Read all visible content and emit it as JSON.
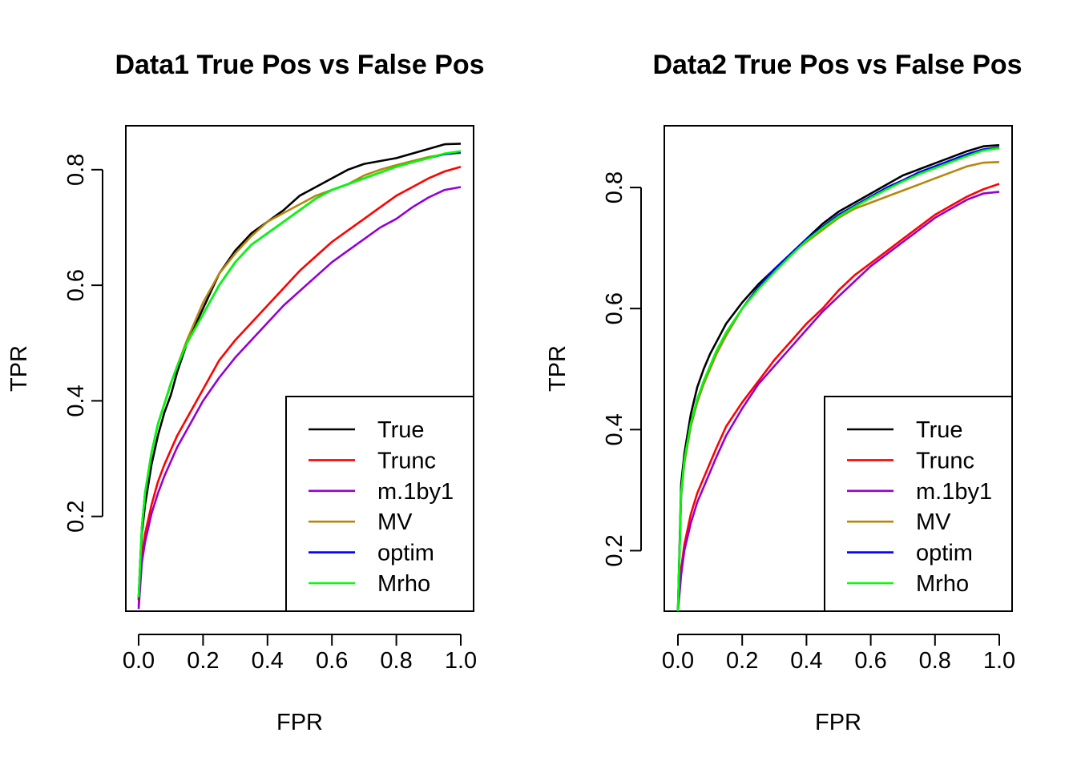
{
  "chart_data": [
    {
      "type": "line",
      "title": "Data1 True Pos vs False Pos",
      "xlabel": "FPR",
      "ylabel": "TPR",
      "xlim": [
        0,
        1
      ],
      "ylim": [
        0.036,
        0.876
      ],
      "xticks": [
        "0.0",
        "0.2",
        "0.4",
        "0.6",
        "0.8",
        "1.0"
      ],
      "yticks": [
        "0.2",
        "0.4",
        "0.6",
        "0.8"
      ],
      "legend_position": "bottom-right",
      "series": [
        {
          "name": "True",
          "color": "#000000",
          "x": [
            0,
            0.01,
            0.02,
            0.04,
            0.06,
            0.08,
            0.1,
            0.12,
            0.15,
            0.2,
            0.25,
            0.3,
            0.35,
            0.4,
            0.45,
            0.5,
            0.55,
            0.6,
            0.65,
            0.7,
            0.75,
            0.8,
            0.85,
            0.9,
            0.95,
            1.0
          ],
          "y": [
            0.055,
            0.17,
            0.22,
            0.29,
            0.34,
            0.38,
            0.41,
            0.45,
            0.5,
            0.56,
            0.62,
            0.66,
            0.69,
            0.71,
            0.73,
            0.755,
            0.77,
            0.785,
            0.8,
            0.81,
            0.815,
            0.82,
            0.828,
            0.836,
            0.844,
            0.845
          ]
        },
        {
          "name": "Trunc",
          "color": "#ff0000",
          "x": [
            0,
            0.01,
            0.02,
            0.04,
            0.06,
            0.08,
            0.1,
            0.12,
            0.15,
            0.2,
            0.25,
            0.3,
            0.35,
            0.4,
            0.45,
            0.5,
            0.55,
            0.6,
            0.65,
            0.7,
            0.75,
            0.8,
            0.85,
            0.9,
            0.95,
            1.0
          ],
          "y": [
            0.045,
            0.13,
            0.17,
            0.22,
            0.26,
            0.29,
            0.315,
            0.34,
            0.37,
            0.42,
            0.47,
            0.505,
            0.535,
            0.565,
            0.595,
            0.625,
            0.65,
            0.675,
            0.695,
            0.715,
            0.735,
            0.755,
            0.77,
            0.785,
            0.797,
            0.805
          ]
        },
        {
          "name": "m.1by1",
          "color": "#9400d3",
          "x": [
            0,
            0.01,
            0.02,
            0.04,
            0.06,
            0.08,
            0.1,
            0.12,
            0.15,
            0.2,
            0.25,
            0.3,
            0.35,
            0.4,
            0.45,
            0.5,
            0.55,
            0.6,
            0.65,
            0.7,
            0.75,
            0.8,
            0.85,
            0.9,
            0.95,
            1.0
          ],
          "y": [
            0.04,
            0.12,
            0.155,
            0.205,
            0.24,
            0.27,
            0.295,
            0.32,
            0.35,
            0.4,
            0.44,
            0.475,
            0.505,
            0.535,
            0.565,
            0.59,
            0.615,
            0.64,
            0.66,
            0.68,
            0.7,
            0.715,
            0.735,
            0.752,
            0.765,
            0.77
          ]
        },
        {
          "name": "MV",
          "color": "#b8860b",
          "x": [
            0,
            0.01,
            0.02,
            0.04,
            0.06,
            0.08,
            0.1,
            0.12,
            0.15,
            0.2,
            0.25,
            0.3,
            0.35,
            0.4,
            0.45,
            0.5,
            0.55,
            0.6,
            0.65,
            0.7,
            0.75,
            0.8,
            0.85,
            0.9,
            0.95,
            1.0
          ],
          "y": [
            0.06,
            0.18,
            0.24,
            0.31,
            0.36,
            0.395,
            0.43,
            0.46,
            0.505,
            0.57,
            0.62,
            0.655,
            0.685,
            0.71,
            0.725,
            0.74,
            0.755,
            0.765,
            0.775,
            0.79,
            0.8,
            0.808,
            0.815,
            0.822,
            0.827,
            0.829
          ]
        },
        {
          "name": "optim",
          "color": "#0000ff",
          "x": [
            0,
            0.01,
            0.02,
            0.04,
            0.06,
            0.08,
            0.1,
            0.12,
            0.15,
            0.2,
            0.25,
            0.3,
            0.35,
            0.4,
            0.45,
            0.5,
            0.55,
            0.6,
            0.65,
            0.7,
            0.75,
            0.8,
            0.85,
            0.9,
            0.95,
            1.0
          ],
          "y": [
            0.06,
            0.18,
            0.24,
            0.31,
            0.36,
            0.395,
            0.43,
            0.46,
            0.5,
            0.55,
            0.6,
            0.64,
            0.67,
            0.69,
            0.71,
            0.73,
            0.75,
            0.765,
            0.775,
            0.785,
            0.795,
            0.805,
            0.813,
            0.82,
            0.827,
            0.83
          ]
        },
        {
          "name": "Mrho",
          "color": "#00ff00",
          "x": [
            0,
            0.01,
            0.02,
            0.04,
            0.06,
            0.08,
            0.1,
            0.12,
            0.15,
            0.2,
            0.25,
            0.3,
            0.35,
            0.4,
            0.45,
            0.5,
            0.55,
            0.6,
            0.65,
            0.7,
            0.75,
            0.8,
            0.85,
            0.9,
            0.95,
            1.0
          ],
          "y": [
            0.06,
            0.18,
            0.24,
            0.31,
            0.36,
            0.395,
            0.43,
            0.46,
            0.5,
            0.55,
            0.6,
            0.64,
            0.67,
            0.69,
            0.71,
            0.73,
            0.75,
            0.765,
            0.775,
            0.785,
            0.795,
            0.805,
            0.813,
            0.82,
            0.828,
            0.832
          ]
        }
      ]
    },
    {
      "type": "line",
      "title": "Data2 True Pos vs False Pos",
      "xlabel": "FPR",
      "ylabel": "TPR",
      "xlim": [
        0,
        1
      ],
      "ylim": [
        0.1,
        0.902
      ],
      "xticks": [
        "0.0",
        "0.2",
        "0.4",
        "0.6",
        "0.8",
        "1.0"
      ],
      "yticks": [
        "0.2",
        "0.4",
        "0.6",
        "0.8"
      ],
      "legend_position": "bottom-right",
      "series": [
        {
          "name": "True",
          "color": "#000000",
          "x": [
            0,
            0.01,
            0.02,
            0.04,
            0.06,
            0.08,
            0.1,
            0.12,
            0.15,
            0.2,
            0.25,
            0.3,
            0.35,
            0.4,
            0.45,
            0.5,
            0.55,
            0.6,
            0.65,
            0.7,
            0.75,
            0.8,
            0.85,
            0.9,
            0.95,
            1.0
          ],
          "y": [
            0.1,
            0.31,
            0.36,
            0.425,
            0.47,
            0.5,
            0.525,
            0.545,
            0.575,
            0.61,
            0.64,
            0.665,
            0.69,
            0.715,
            0.74,
            0.76,
            0.775,
            0.79,
            0.805,
            0.82,
            0.83,
            0.84,
            0.85,
            0.86,
            0.868,
            0.87
          ]
        },
        {
          "name": "Trunc",
          "color": "#ff0000",
          "x": [
            0,
            0.01,
            0.02,
            0.04,
            0.06,
            0.08,
            0.1,
            0.12,
            0.15,
            0.2,
            0.25,
            0.3,
            0.35,
            0.4,
            0.45,
            0.5,
            0.55,
            0.6,
            0.65,
            0.7,
            0.75,
            0.8,
            0.85,
            0.9,
            0.95,
            1.0
          ],
          "y": [
            0.1,
            0.17,
            0.21,
            0.26,
            0.295,
            0.32,
            0.345,
            0.37,
            0.405,
            0.445,
            0.48,
            0.515,
            0.545,
            0.575,
            0.6,
            0.63,
            0.655,
            0.675,
            0.695,
            0.715,
            0.735,
            0.755,
            0.77,
            0.785,
            0.797,
            0.806
          ]
        },
        {
          "name": "m.1by1",
          "color": "#9400d3",
          "x": [
            0,
            0.01,
            0.02,
            0.04,
            0.06,
            0.08,
            0.1,
            0.12,
            0.15,
            0.2,
            0.25,
            0.3,
            0.35,
            0.4,
            0.45,
            0.5,
            0.55,
            0.6,
            0.65,
            0.7,
            0.75,
            0.8,
            0.85,
            0.9,
            0.95,
            1.0
          ],
          "y": [
            0.1,
            0.16,
            0.2,
            0.245,
            0.28,
            0.305,
            0.33,
            0.355,
            0.39,
            0.435,
            0.475,
            0.505,
            0.535,
            0.565,
            0.595,
            0.62,
            0.645,
            0.67,
            0.69,
            0.71,
            0.73,
            0.75,
            0.765,
            0.78,
            0.79,
            0.793
          ]
        },
        {
          "name": "MV",
          "color": "#b8860b",
          "x": [
            0,
            0.01,
            0.02,
            0.04,
            0.06,
            0.08,
            0.1,
            0.12,
            0.15,
            0.2,
            0.25,
            0.3,
            0.35,
            0.4,
            0.45,
            0.5,
            0.55,
            0.6,
            0.65,
            0.7,
            0.75,
            0.8,
            0.85,
            0.9,
            0.95,
            1.0
          ],
          "y": [
            0.1,
            0.29,
            0.345,
            0.405,
            0.445,
            0.475,
            0.5,
            0.525,
            0.555,
            0.6,
            0.635,
            0.665,
            0.69,
            0.71,
            0.73,
            0.75,
            0.765,
            0.775,
            0.785,
            0.795,
            0.805,
            0.815,
            0.825,
            0.835,
            0.841,
            0.842
          ]
        },
        {
          "name": "optim",
          "color": "#0000ff",
          "x": [
            0,
            0.01,
            0.02,
            0.04,
            0.06,
            0.08,
            0.1,
            0.12,
            0.15,
            0.2,
            0.25,
            0.3,
            0.35,
            0.4,
            0.45,
            0.5,
            0.55,
            0.6,
            0.65,
            0.7,
            0.75,
            0.8,
            0.85,
            0.9,
            0.95,
            1.0
          ],
          "y": [
            0.1,
            0.295,
            0.35,
            0.41,
            0.45,
            0.48,
            0.505,
            0.53,
            0.56,
            0.6,
            0.635,
            0.665,
            0.69,
            0.715,
            0.735,
            0.755,
            0.77,
            0.785,
            0.8,
            0.812,
            0.825,
            0.835,
            0.845,
            0.855,
            0.863,
            0.866
          ]
        },
        {
          "name": "Mrho",
          "color": "#00ff00",
          "x": [
            0,
            0.01,
            0.02,
            0.04,
            0.06,
            0.08,
            0.1,
            0.12,
            0.15,
            0.2,
            0.25,
            0.3,
            0.35,
            0.4,
            0.45,
            0.5,
            0.55,
            0.6,
            0.65,
            0.7,
            0.75,
            0.8,
            0.85,
            0.9,
            0.95,
            1.0
          ],
          "y": [
            0.1,
            0.295,
            0.35,
            0.41,
            0.45,
            0.48,
            0.505,
            0.53,
            0.56,
            0.6,
            0.632,
            0.66,
            0.687,
            0.712,
            0.733,
            0.752,
            0.768,
            0.783,
            0.797,
            0.81,
            0.822,
            0.832,
            0.842,
            0.852,
            0.861,
            0.865
          ]
        }
      ]
    }
  ]
}
